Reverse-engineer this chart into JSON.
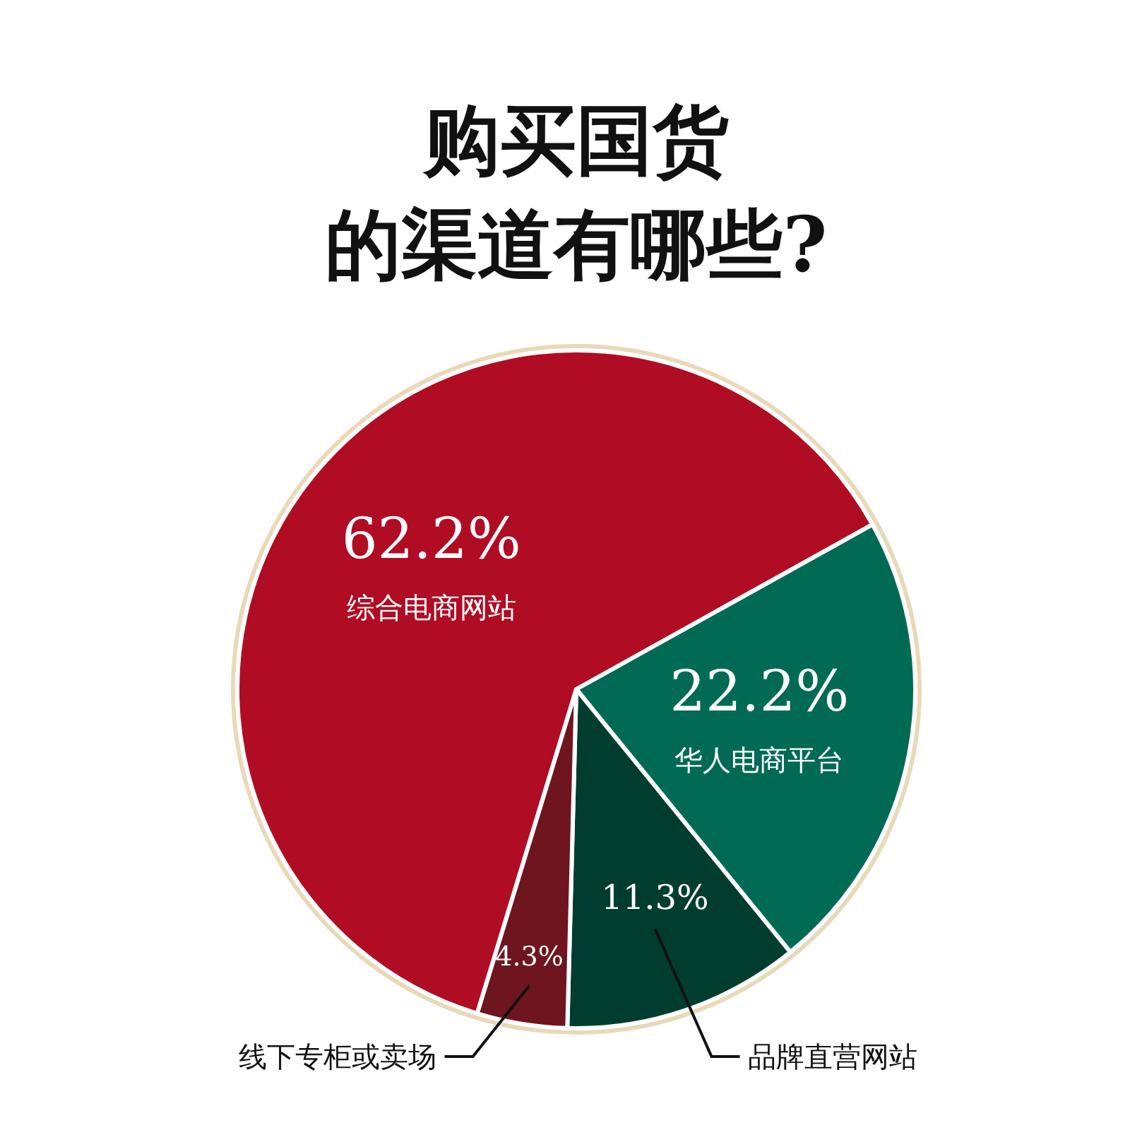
{
  "chart_data": {
    "type": "pie",
    "title": "购买国货的渠道有哪些?",
    "categories": [
      "综合电商网站",
      "华人电商平台",
      "品牌直营网站",
      "线下专柜或卖场"
    ],
    "values": [
      62.2,
      22.2,
      11.3,
      4.3
    ],
    "colors": [
      "#b00c23",
      "#006a55",
      "#003d2f",
      "#6e1520"
    ],
    "value_labels": [
      "62.2%",
      "22.2%",
      "11.3%",
      "4.3%"
    ]
  }
}
